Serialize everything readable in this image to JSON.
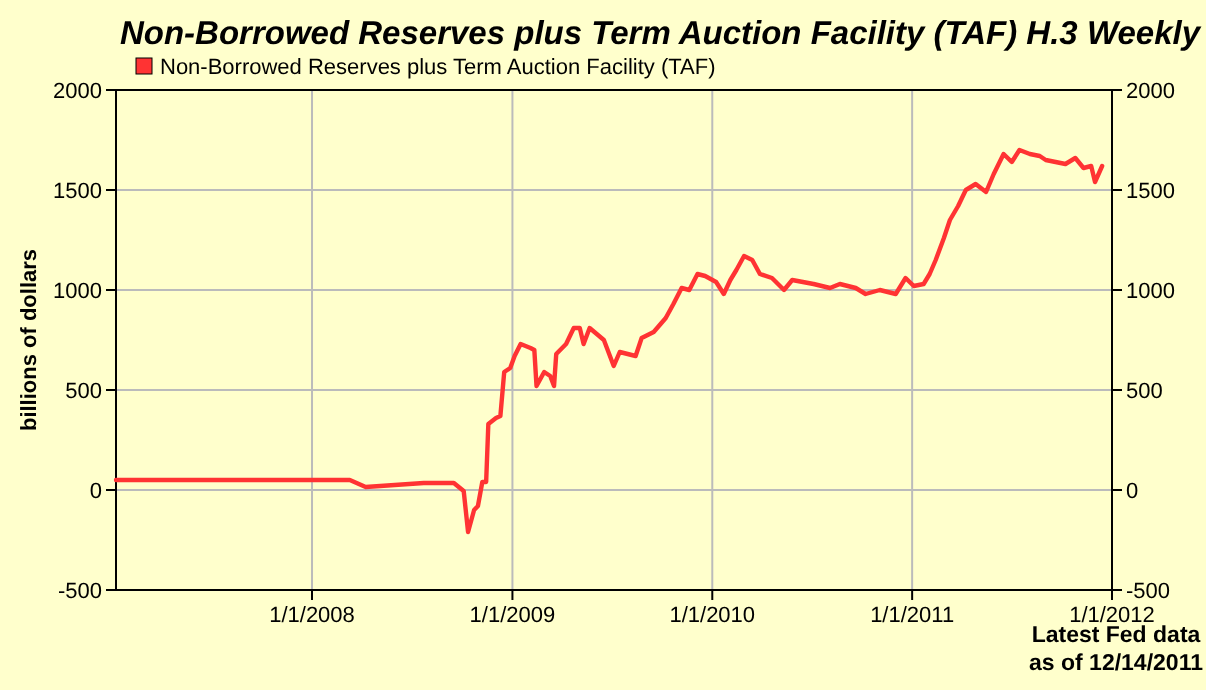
{
  "chart_data": {
    "type": "line",
    "title": "Non-Borrowed Reserves plus Term Auction Facility (TAF) H.3 Weekly",
    "ylabel": "billions of dollars",
    "annotations": [
      "Latest Fed data",
      "as of 12/14/2011"
    ],
    "x": [
      "2007-01-08",
      "2007-06-10",
      "2007-11-03",
      "2008-03-10",
      "2008-04-08",
      "2008-07-23",
      "2008-09-16",
      "2008-10-04",
      "2008-10-12",
      "2008-10-23",
      "2008-10-30",
      "2008-11-07",
      "2008-11-14",
      "2008-11-18",
      "2008-12-02",
      "2008-12-10",
      "2008-12-17",
      "2008-12-28",
      "2009-01-05",
      "2009-01-16",
      "2009-02-03",
      "2009-02-10",
      "2009-02-14",
      "2009-02-28",
      "2009-03-11",
      "2009-03-18",
      "2009-03-22",
      "2009-04-09",
      "2009-04-23",
      "2009-05-04",
      "2009-05-11",
      "2009-05-22",
      "2009-06-17",
      "2009-07-05",
      "2009-07-16",
      "2009-08-14",
      "2009-08-25",
      "2009-09-16",
      "2009-10-08",
      "2009-10-22",
      "2009-11-06",
      "2009-11-20",
      "2009-12-05",
      "2009-12-19",
      "2010-01-08",
      "2010-01-22",
      "2010-02-03",
      "2010-02-14",
      "2010-02-28",
      "2010-03-15",
      "2010-03-29",
      "2010-04-20",
      "2010-05-12",
      "2010-05-27",
      "2010-07-05",
      "2010-08-04",
      "2010-08-22",
      "2010-09-20",
      "2010-10-08",
      "2010-11-03",
      "2010-12-02",
      "2010-12-20",
      "2011-01-04",
      "2011-01-22",
      "2011-02-02",
      "2011-02-13",
      "2011-02-28",
      "2011-03-11",
      "2011-03-26",
      "2011-04-09",
      "2011-04-27",
      "2011-05-16",
      "2011-05-30",
      "2011-06-17",
      "2011-07-02",
      "2011-07-16",
      "2011-08-04",
      "2011-08-22",
      "2011-09-02",
      "2011-09-20",
      "2011-10-08",
      "2011-10-26",
      "2011-11-10",
      "2011-11-24",
      "2011-12-01",
      "2011-12-14"
    ],
    "series": [
      {
        "name": "Non-Borrowed Reserves plus Term Auction Facility (TAF)",
        "color": "#ff3333",
        "values": [
          50,
          50,
          50,
          50,
          15,
          35,
          35,
          -5,
          -210,
          -100,
          -80,
          40,
          40,
          330,
          360,
          370,
          590,
          610,
          670,
          730,
          710,
          700,
          520,
          590,
          570,
          520,
          680,
          730,
          810,
          810,
          730,
          810,
          750,
          620,
          690,
          670,
          760,
          790,
          860,
          930,
          1010,
          1000,
          1080,
          1070,
          1040,
          980,
          1050,
          1100,
          1170,
          1150,
          1080,
          1060,
          1000,
          1050,
          1030,
          1010,
          1030,
          1010,
          980,
          1000,
          980,
          1060,
          1020,
          1030,
          1080,
          1150,
          1260,
          1350,
          1420,
          1500,
          1530,
          1490,
          1580,
          1680,
          1640,
          1700,
          1680,
          1670,
          1650,
          1640,
          1630,
          1660,
          1610,
          1620,
          1540,
          1620
        ]
      }
    ],
    "xlim": [
      "2007-01-08",
      "2012-01-01"
    ],
    "xticks": [
      {
        "value": "2008-01-01",
        "label": "1/1/2008"
      },
      {
        "value": "2009-01-01",
        "label": "1/1/2009"
      },
      {
        "value": "2010-01-01",
        "label": "1/1/2010"
      },
      {
        "value": "2011-01-01",
        "label": "1/1/2011"
      },
      {
        "value": "2012-01-01",
        "label": "1/1/2012"
      }
    ],
    "ylim": [
      -500,
      2000
    ],
    "yticks": [
      -500,
      0,
      500,
      1000,
      1500,
      2000
    ],
    "y2lim": [
      -500,
      2000
    ],
    "y2ticks": [
      -500,
      0,
      500,
      1000,
      1500,
      2000
    ],
    "grid": true,
    "legend": "top left",
    "line_style": "solid",
    "marker": "none"
  }
}
